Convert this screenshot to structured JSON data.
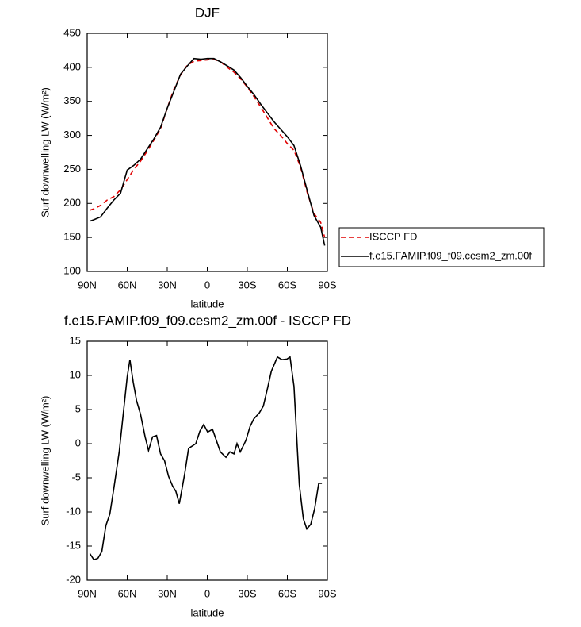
{
  "chart_data": [
    {
      "type": "line",
      "title": "DJF",
      "xlabel": "latitude",
      "ylabel": "Surf downwelling LW (W/m²)",
      "xlim": [
        90,
        -90
      ],
      "xticks": [
        {
          "value": 90,
          "label": "90N"
        },
        {
          "value": 60,
          "label": "60N"
        },
        {
          "value": 30,
          "label": "30N"
        },
        0,
        {
          "value": -30,
          "label": "30S"
        },
        {
          "value": -60,
          "label": "60S"
        },
        {
          "value": -90,
          "label": "90S"
        }
      ],
      "ylim": [
        100,
        450
      ],
      "yticks": [
        100,
        150,
        200,
        250,
        300,
        350,
        400,
        450
      ],
      "legend": "right",
      "x": [
        88,
        85,
        80,
        75,
        70,
        65,
        60,
        55,
        50,
        45,
        40,
        35,
        30,
        25,
        20,
        15,
        10,
        5,
        0,
        -5,
        -10,
        -15,
        -20,
        -25,
        -30,
        -35,
        -40,
        -45,
        -50,
        -55,
        -60,
        -65,
        -70,
        -75,
        -80,
        -85,
        -88
      ],
      "series": [
        {
          "name": "ISCCP FD",
          "color": "#e00000",
          "style": "dashed",
          "values": [
            190,
            192,
            197,
            205,
            210,
            220,
            235,
            250,
            262,
            277,
            293,
            310,
            340,
            368,
            389,
            403,
            409,
            410,
            411,
            412,
            408,
            400,
            393,
            383,
            371,
            357,
            342,
            326,
            310,
            300,
            288,
            278,
            253,
            215,
            185,
            172,
            150
          ]
        },
        {
          "name": "f.e15.FAMIP.f09_f09.cesm2_zm.00f",
          "color": "#000000",
          "style": "solid",
          "values": [
            174,
            176,
            180,
            193,
            205,
            215,
            249,
            256,
            265,
            280,
            295,
            312,
            340,
            365,
            390,
            402,
            413,
            412,
            413,
            413,
            408,
            402,
            396,
            385,
            372,
            360,
            346,
            333,
            320,
            309,
            298,
            285,
            255,
            218,
            182,
            165,
            138
          ]
        }
      ]
    },
    {
      "type": "line",
      "title": "f.e15.FAMIP.f09_f09.cesm2_zm.00f - ISCCP FD",
      "xlabel": "latitude",
      "ylabel": "Surf downwelling LW (W/m²)",
      "xlim": [
        90,
        -90
      ],
      "xticks": [
        {
          "value": 90,
          "label": "90N"
        },
        {
          "value": 60,
          "label": "60N"
        },
        {
          "value": 30,
          "label": "30N"
        },
        0,
        {
          "value": -30,
          "label": "30S"
        },
        {
          "value": -60,
          "label": "60S"
        },
        {
          "value": -90,
          "label": "90S"
        }
      ],
      "ylim": [
        -20,
        15
      ],
      "yticks": [
        15,
        10,
        5,
        0,
        -5,
        -10,
        -15,
        -20
      ],
      "x": [
        88,
        85,
        82,
        79,
        76,
        73,
        70,
        66,
        60,
        58,
        55.5,
        53,
        50,
        46.6,
        44,
        41,
        38,
        35,
        32,
        29,
        26,
        23.5,
        21,
        17,
        14,
        8.6,
        5.6,
        2.7,
        -0.3,
        -3.9,
        -6.8,
        -9.8,
        -14,
        -17,
        -20,
        -22.3,
        -24.7,
        -29,
        -32,
        -34.8,
        -39,
        -42,
        -45,
        -48,
        -52.6,
        -56,
        -59.7,
        -62,
        -65,
        -67.5,
        -69,
        -72,
        -74.6,
        -77.6,
        -80.5,
        -83.5,
        -85.9
      ],
      "series": [
        {
          "name": "f.e15.FAMIP.f09_f09.cesm2_zm.00f - ISCCP FD",
          "color": "#000000",
          "style": "solid",
          "values": [
            -16.1,
            -17,
            -16.8,
            -15.8,
            -12,
            -10.3,
            -6.5,
            -1.2,
            9.8,
            12.3,
            9,
            6.3,
            4.3,
            1,
            -1,
            1,
            1.2,
            -1.5,
            -2.5,
            -4.8,
            -6.2,
            -7,
            -8.8,
            -4.5,
            -0.7,
            0,
            1.8,
            2.8,
            1.7,
            2.1,
            0.5,
            -1.2,
            -2,
            -1.2,
            -1.5,
            0,
            -1.2,
            0.5,
            2.5,
            3.6,
            4.5,
            5.5,
            8,
            10.6,
            12.7,
            12.3,
            12.4,
            12.7,
            8.4,
            -0.7,
            -6,
            -11,
            -12.5,
            -11.8,
            -9.5,
            -5.8,
            -5.8
          ]
        }
      ]
    }
  ]
}
